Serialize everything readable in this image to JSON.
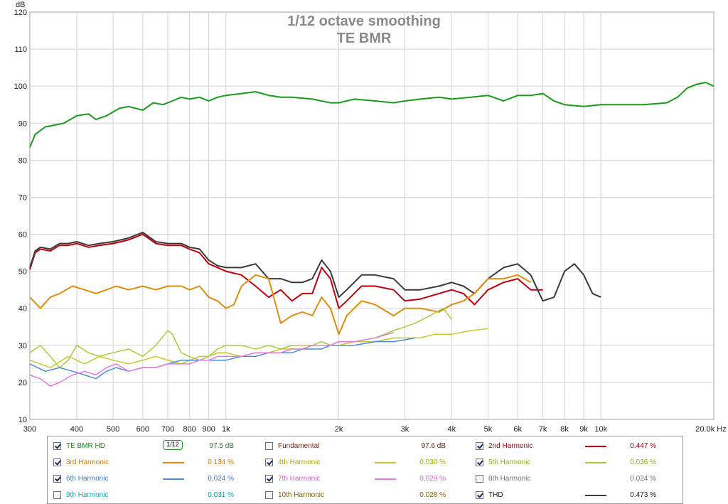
{
  "chart_data": {
    "type": "line",
    "title": "1/12 octave smoothing",
    "subtitle": "TE BMR",
    "ylabel": "dB",
    "xlabel": "Hz",
    "xscale": "log",
    "xlim": [
      300,
      20000
    ],
    "ylim": [
      10,
      120
    ],
    "grid": true,
    "y_ticks": [
      "10",
      "20",
      "30",
      "40",
      "50",
      "60",
      "70",
      "80",
      "90",
      "100",
      "110",
      "120"
    ],
    "x_ticks": [
      {
        "v": 300,
        "label": "300"
      },
      {
        "v": 400,
        "label": "400"
      },
      {
        "v": 500,
        "label": "500"
      },
      {
        "v": 600,
        "label": "600"
      },
      {
        "v": 700,
        "label": "700"
      },
      {
        "v": 800,
        "label": "800"
      },
      {
        "v": 900,
        "label": "900"
      },
      {
        "v": 1000,
        "label": "1k"
      },
      {
        "v": 2000,
        "label": "2k"
      },
      {
        "v": 3000,
        "label": "3k"
      },
      {
        "v": 4000,
        "label": "4k"
      },
      {
        "v": 5000,
        "label": "5k"
      },
      {
        "v": 6000,
        "label": "6k"
      },
      {
        "v": 7000,
        "label": "7k"
      },
      {
        "v": 8000,
        "label": "8k"
      },
      {
        "v": 9000,
        "label": "9k"
      },
      {
        "v": 10000,
        "label": "10k"
      },
      {
        "v": 20000,
        "label": "20.0k Hz"
      }
    ],
    "series": [
      {
        "name": "TE BMR HD",
        "color": "#1a9a1a",
        "width": 2,
        "x": [
          300,
          310,
          330,
          350,
          370,
          400,
          430,
          450,
          480,
          520,
          550,
          600,
          640,
          680,
          720,
          760,
          800,
          850,
          900,
          950,
          1000,
          1100,
          1200,
          1300,
          1400,
          1500,
          1700,
          1900,
          2000,
          2200,
          2500,
          2800,
          3000,
          3300,
          3700,
          4000,
          4500,
          5000,
          5500,
          6000,
          6500,
          7000,
          7500,
          8000,
          9000,
          10000,
          11000,
          12000,
          13000,
          15000,
          16000,
          17000,
          18000,
          19000,
          20000
        ],
        "y": [
          83.5,
          87,
          89,
          89.5,
          90,
          92,
          92.5,
          91,
          92,
          94,
          94.5,
          93.5,
          95.5,
          95,
          96,
          97,
          96.5,
          97,
          96,
          97,
          97.5,
          98,
          98.5,
          97.5,
          97,
          97,
          96.5,
          95.5,
          95.5,
          96.5,
          96,
          95.5,
          96,
          96.5,
          97,
          96.5,
          97,
          97.5,
          96,
          97.5,
          97.5,
          98,
          96,
          95,
          94.5,
          95,
          95,
          95,
          95,
          95.5,
          97,
          99.5,
          100.5,
          101,
          100
        ]
      },
      {
        "name": "2nd Harmonic",
        "color": "#c0000b",
        "width": 2,
        "x": [
          300,
          310,
          320,
          340,
          360,
          380,
          400,
          430,
          460,
          500,
          550,
          600,
          650,
          700,
          760,
          800,
          850,
          900,
          950,
          1000,
          1100,
          1200,
          1300,
          1400,
          1500,
          1600,
          1700,
          1800,
          1900,
          2000,
          2100,
          2300,
          2500,
          2800,
          3000,
          3300,
          3700,
          4000,
          4300,
          4600,
          5000,
          5500,
          6000,
          6500,
          7000
        ],
        "y": [
          50.5,
          55,
          56,
          55.5,
          57,
          57,
          57.5,
          56.5,
          57,
          57.5,
          58.5,
          60,
          57.5,
          57,
          57,
          56,
          55,
          52,
          51,
          50,
          49,
          46,
          43,
          45,
          42,
          44,
          44,
          51,
          48,
          40,
          42,
          46,
          46,
          45,
          42,
          42.5,
          44,
          45,
          44,
          41,
          45,
          47,
          48,
          45,
          45
        ]
      },
      {
        "name": "THD",
        "color": "#3a3a3a",
        "width": 2,
        "x": [
          300,
          310,
          320,
          340,
          360,
          380,
          400,
          430,
          460,
          500,
          550,
          600,
          650,
          700,
          760,
          800,
          850,
          900,
          950,
          1000,
          1100,
          1200,
          1300,
          1400,
          1500,
          1600,
          1700,
          1800,
          1900,
          2000,
          2100,
          2300,
          2500,
          2800,
          3000,
          3300,
          3700,
          4000,
          4300,
          4600,
          5000,
          5500,
          6000,
          6500,
          7000,
          7500,
          8000,
          8500,
          9000,
          9500,
          10000
        ],
        "y": [
          51,
          55.5,
          56.5,
          56,
          57.5,
          57.5,
          58,
          57,
          57.5,
          58,
          59,
          60.5,
          58,
          57.5,
          57.5,
          56.5,
          56,
          53,
          51.5,
          51,
          51,
          52,
          48,
          48,
          47,
          47,
          48,
          53,
          50,
          43,
          45,
          49,
          49,
          48,
          45,
          45,
          46,
          47,
          46,
          44,
          48,
          51,
          52,
          49,
          42,
          43,
          50,
          52,
          49,
          44,
          43
        ]
      },
      {
        "name": "3rd Harmonic",
        "color": "#e08c0c",
        "width": 2,
        "x": [
          300,
          320,
          340,
          360,
          390,
          420,
          450,
          480,
          510,
          550,
          600,
          650,
          700,
          760,
          800,
          850,
          900,
          950,
          1000,
          1050,
          1100,
          1200,
          1300,
          1400,
          1500,
          1600,
          1700,
          1800,
          1900,
          2000,
          2100,
          2300,
          2500,
          2800,
          3000,
          3300,
          3700,
          4000,
          4300,
          4600,
          5000,
          5500,
          6000,
          6500
        ],
        "y": [
          43,
          40,
          43,
          44,
          46,
          45,
          44,
          45,
          46,
          45,
          46,
          45,
          46,
          46,
          45,
          46,
          43,
          42,
          40,
          41,
          46,
          49,
          48,
          36,
          38,
          39,
          38,
          43,
          40,
          33,
          38,
          42,
          41,
          38,
          40,
          40,
          39,
          41,
          42,
          44,
          48,
          48,
          49,
          47
        ]
      },
      {
        "name": "4th Harmonic",
        "color": "#c8c82a",
        "width": 1.5,
        "x": [
          300,
          340,
          380,
          420,
          460,
          500,
          550,
          600,
          650,
          700,
          760,
          800,
          850,
          900,
          950,
          1000,
          1100,
          1200,
          1300,
          1400,
          1500,
          1600,
          1700,
          1800,
          1900,
          2000,
          2200,
          2500,
          2800,
          3000,
          3300,
          3600,
          4000,
          4500,
          5000
        ],
        "y": [
          26,
          24,
          27,
          25,
          27,
          26,
          25,
          26,
          27,
          26,
          25,
          26,
          27,
          27,
          28,
          28,
          27,
          28,
          28,
          29,
          29,
          29,
          30,
          30,
          30,
          30,
          31,
          31,
          32,
          32,
          32,
          33,
          33,
          34,
          34.5
        ]
      },
      {
        "name": "5th Harmonic",
        "color": "#a8cc38",
        "width": 1.5,
        "x": [
          300,
          320,
          340,
          360,
          380,
          400,
          430,
          460,
          500,
          550,
          600,
          650,
          700,
          720,
          760,
          800,
          850,
          900,
          950,
          1000,
          1100,
          1200,
          1300,
          1400,
          1500,
          1600,
          1700,
          1800,
          1900,
          2000,
          2200,
          2500,
          2800,
          3000,
          3200,
          3500,
          3800,
          4000
        ],
        "y": [
          28,
          30,
          27,
          24,
          26,
          30,
          28,
          27,
          28,
          29,
          27,
          30,
          34,
          33,
          28,
          27,
          26,
          27,
          29,
          30,
          30,
          29,
          30,
          29,
          30,
          30,
          30,
          31,
          30,
          31,
          31,
          32,
          34,
          35,
          36,
          38,
          40,
          37
        ]
      },
      {
        "name": "6th Harmonic",
        "color": "#4a8ce0",
        "width": 1.5,
        "x": [
          300,
          330,
          360,
          390,
          420,
          450,
          480,
          510,
          550,
          600,
          650,
          700,
          760,
          800,
          850,
          900,
          950,
          1000,
          1100,
          1200,
          1300,
          1400,
          1500,
          1600,
          1700,
          1800,
          1900,
          2000,
          2200,
          2500,
          2800,
          3000,
          3200
        ],
        "y": [
          25,
          23,
          24,
          23,
          22,
          21,
          23,
          24,
          23,
          24,
          24,
          25,
          26,
          26,
          26,
          26,
          26,
          26,
          27,
          27,
          28,
          28,
          28,
          29,
          29,
          29,
          30,
          30,
          30,
          31,
          31,
          31.5,
          32
        ]
      },
      {
        "name": "7th Harmonic",
        "color": "#e878e0",
        "width": 1.5,
        "x": [
          300,
          320,
          340,
          360,
          390,
          420,
          450,
          480,
          510,
          550,
          600,
          650,
          700,
          760,
          800,
          850,
          900,
          950,
          1000,
          1100,
          1200,
          1300,
          1400,
          1500,
          1600,
          1700,
          1800,
          1900,
          2000,
          2200,
          2500,
          2700,
          2800
        ],
        "y": [
          22,
          21,
          19,
          20,
          22,
          23,
          22,
          24,
          25,
          23,
          24,
          24,
          25,
          25,
          25,
          26,
          26,
          27,
          27,
          27,
          28,
          28,
          28,
          29,
          29,
          30,
          30,
          30,
          31,
          31,
          32,
          33,
          33.5
        ]
      }
    ]
  },
  "legend": {
    "smoothing_glyph": "1/12",
    "rows": [
      [
        {
          "label": "TE BMR HD",
          "label_color": "#1a8a1a",
          "checked": true,
          "line": "smooth",
          "value": "97.5 dB",
          "value_color": "#1a8a1a"
        },
        {
          "label": "Fundamental",
          "label_color": "#7a1e00",
          "checked": false,
          "line": "",
          "value": "97.6 dB",
          "value_color": "#7a1e00"
        },
        {
          "label": "2nd Harmonic",
          "label_color": "#a00010",
          "checked": true,
          "line": "#c0000b",
          "value": "0.447 %",
          "value_color": "#a00010"
        }
      ],
      [
        {
          "label": "3rd Harmonic",
          "label_color": "#d08000",
          "checked": true,
          "line": "#e08c0c",
          "value": "0.134 %",
          "value_color": "#d08000"
        },
        {
          "label": "4th Harmonic",
          "label_color": "#a8a800",
          "checked": true,
          "line": "#c8c82a",
          "value": "0.030 %",
          "value_color": "#a8a800"
        },
        {
          "label": "5th Harmonic",
          "label_color": "#88b020",
          "checked": true,
          "line": "#a8cc38",
          "value": "0.036 %",
          "value_color": "#88b020"
        }
      ],
      [
        {
          "label": "6th Harmonic",
          "label_color": "#3a7ad0",
          "checked": true,
          "line": "#4a8ce0",
          "value": "0.024 %",
          "value_color": "#3a7ad0"
        },
        {
          "label": "7th Harmonic",
          "label_color": "#d860d0",
          "checked": true,
          "line": "#e878e0",
          "value": "0.029 %",
          "value_color": "#d860d0"
        },
        {
          "label": "8th Harmonic",
          "label_color": "#707070",
          "checked": false,
          "line": "",
          "value": "0.024 %",
          "value_color": "#707070"
        }
      ],
      [
        {
          "label": "9th Harmonic",
          "label_color": "#10a8b0",
          "checked": false,
          "line": "",
          "value": "0.031 %",
          "value_color": "#10a8b0"
        },
        {
          "label": "10th Harmonic",
          "label_color": "#806000",
          "checked": false,
          "line": "",
          "value": "0.028 %",
          "value_color": "#806000"
        },
        {
          "label": "THD",
          "label_color": "#202020",
          "checked": true,
          "line": "#3a3a3a",
          "value": "0.473 %",
          "value_color": "#202020"
        }
      ]
    ]
  }
}
